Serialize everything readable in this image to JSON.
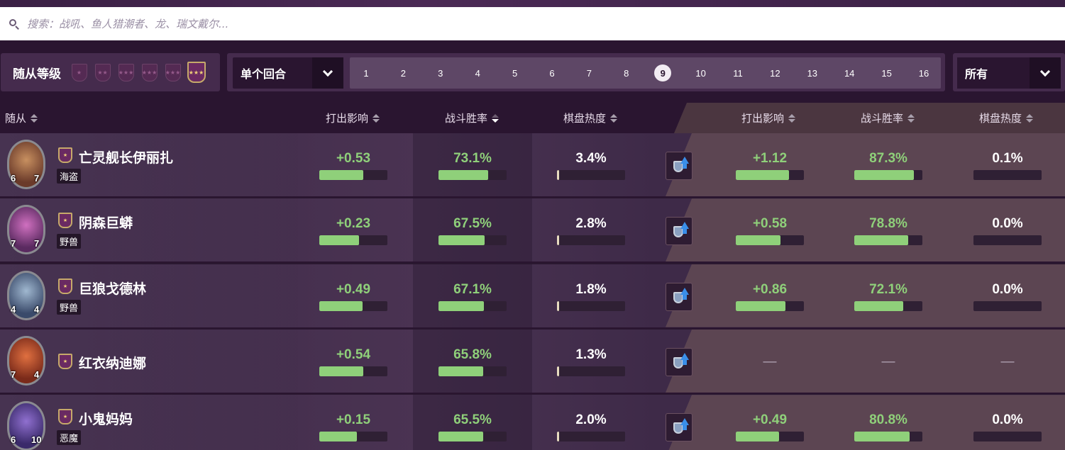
{
  "search": {
    "placeholder": "搜索：战吼、鱼人猎潮者、龙、瑞文戴尔..."
  },
  "filters": {
    "tier_label": "随从等级",
    "tiers": [
      1,
      2,
      3,
      4,
      5,
      6
    ],
    "active_tier": 6,
    "turn_mode": "单个回合",
    "turns": [
      "1",
      "2",
      "3",
      "4",
      "5",
      "6",
      "7",
      "8",
      "9",
      "10",
      "11",
      "12",
      "13",
      "14",
      "15",
      "16"
    ],
    "active_turn": "9",
    "type_filter": "所有"
  },
  "headers": {
    "minion": "随从",
    "play_impact": "打出影响",
    "combat_winrate": "战斗胜率",
    "board_heat": "棋盘热度",
    "golden_play_impact": "打出影响",
    "golden_combat_winrate": "战斗胜率",
    "golden_board_heat": "棋盘热度"
  },
  "colors": {
    "green": "#8fd07a",
    "panel": "#452b4d",
    "accent_gold": "#c6a96a"
  },
  "rows": [
    {
      "name": "亡灵舰长伊丽扎",
      "tribe": "海盗",
      "attack": "6",
      "health": "7",
      "play_impact": "+0.53",
      "play_impact_bar": 0.65,
      "winrate": "73.1%",
      "winrate_bar": 0.73,
      "heat": "3.4%",
      "heat_bar": 0.03,
      "golden_play_impact": "+1.12",
      "golden_play_impact_bar": 0.78,
      "golden_winrate": "87.3%",
      "golden_winrate_bar": 0.87,
      "golden_heat": "0.1%",
      "golden_heat_bar": 0.0
    },
    {
      "name": "阴森巨蟒",
      "tribe": "野兽",
      "attack": "7",
      "health": "7",
      "play_impact": "+0.23",
      "play_impact_bar": 0.58,
      "winrate": "67.5%",
      "winrate_bar": 0.68,
      "heat": "2.8%",
      "heat_bar": 0.02,
      "golden_play_impact": "+0.58",
      "golden_play_impact_bar": 0.66,
      "golden_winrate": "78.8%",
      "golden_winrate_bar": 0.79,
      "golden_heat": "0.0%",
      "golden_heat_bar": 0.0
    },
    {
      "name": "巨狼戈德林",
      "tribe": "野兽",
      "attack": "4",
      "health": "4",
      "play_impact": "+0.49",
      "play_impact_bar": 0.64,
      "winrate": "67.1%",
      "winrate_bar": 0.67,
      "heat": "1.8%",
      "heat_bar": 0.015,
      "golden_play_impact": "+0.86",
      "golden_play_impact_bar": 0.73,
      "golden_winrate": "72.1%",
      "golden_winrate_bar": 0.72,
      "golden_heat": "0.0%",
      "golden_heat_bar": 0.0
    },
    {
      "name": "红衣纳迪娜",
      "tribe": "",
      "attack": "7",
      "health": "4",
      "play_impact": "+0.54",
      "play_impact_bar": 0.65,
      "winrate": "65.8%",
      "winrate_bar": 0.66,
      "heat": "1.3%",
      "heat_bar": 0.012,
      "golden_play_impact": "—",
      "golden_play_impact_bar": null,
      "golden_winrate": "—",
      "golden_winrate_bar": null,
      "golden_heat": "—",
      "golden_heat_bar": null
    },
    {
      "name": "小鬼妈妈",
      "tribe": "恶魔",
      "attack": "6",
      "health": "10",
      "play_impact": "+0.15",
      "play_impact_bar": 0.55,
      "winrate": "65.5%",
      "winrate_bar": 0.66,
      "heat": "2.0%",
      "heat_bar": 0.018,
      "golden_play_impact": "+0.49",
      "golden_play_impact_bar": 0.64,
      "golden_winrate": "80.8%",
      "golden_winrate_bar": 0.81,
      "golden_heat": "0.0%",
      "golden_heat_bar": 0.0
    }
  ]
}
